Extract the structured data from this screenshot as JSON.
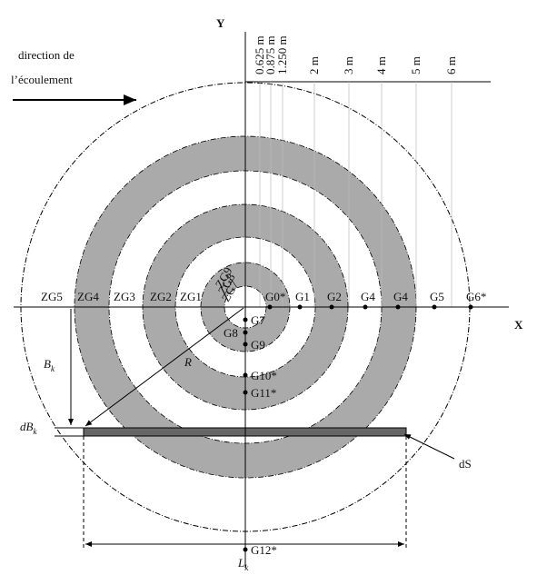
{
  "axes": {
    "x": "X",
    "y": "Y"
  },
  "flow": {
    "line1": "direction de",
    "line2": "l’écoulement"
  },
  "distances": [
    "0.625 m",
    "0.875 m",
    "1.250 m",
    "2 m",
    "3 m",
    "4 m",
    "5 m",
    "6 m"
  ],
  "zones": [
    "ZG5",
    "ZG4",
    "ZG3",
    "ZG2",
    "ZG1",
    "ZG9",
    "ZG8",
    "ZG7"
  ],
  "gauges_x": [
    "G0*",
    "G1",
    "G2",
    "G4",
    "G4",
    "G5",
    "G6*"
  ],
  "gauges_y": [
    "G7",
    "G8",
    "G9",
    "G10*",
    "G11*",
    "G12*"
  ],
  "dimensions": {
    "R": "R",
    "Bk": {
      "main": "B",
      "sub": "k"
    },
    "dBk": {
      "main": "dB",
      "sub": "k"
    },
    "Lk": {
      "main": "L",
      "sub": "k"
    },
    "dS": "dS"
  }
}
